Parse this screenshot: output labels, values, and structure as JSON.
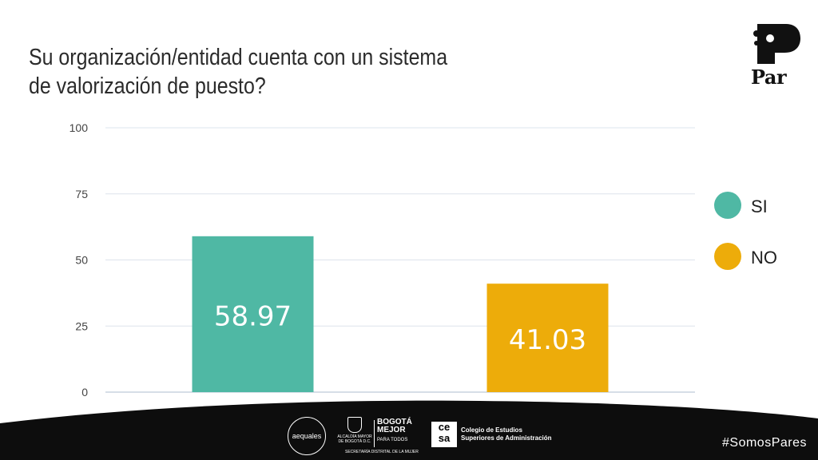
{
  "title_lines": [
    "Su organización/entidad cuenta con un sistema",
    "de valorización de puesto?"
  ],
  "chart_data": {
    "type": "bar",
    "title": "Su organización/entidad cuenta con un sistema de valorización de puesto?",
    "categories": [
      "SI",
      "NO"
    ],
    "values": [
      58.97,
      41.03
    ],
    "bar_value_labels": [
      "58.97",
      "41.03"
    ],
    "colors": [
      "#4fb8a4",
      "#edac0a"
    ],
    "ylim": [
      0,
      100
    ],
    "yticks": [
      0,
      25,
      50,
      75,
      100
    ],
    "ytick_labels": [
      "0",
      "25",
      "50",
      "75",
      "100"
    ],
    "grid": true,
    "legend_position": "right",
    "xlabel": "",
    "ylabel": ""
  },
  "legend": [
    {
      "label": "SI",
      "color": "#4fb8a4"
    },
    {
      "label": "NO",
      "color": "#edac0a"
    }
  ],
  "logo": {
    "text": "Par"
  },
  "footer": {
    "aequales": "aequales",
    "alcaldia": "ALCALDÍA MAYOR DE BOGOTÁ D.C.",
    "bogota_line1": "BOGOTÁ",
    "bogota_line2": "MEJOR",
    "bogota_line3": "PARA TODOS",
    "secretaria": "SECRETARÍA DISTRITAL DE LA MUJER",
    "cesa_logo": "ce sa",
    "cesa_line1": "Colegio de Estudios",
    "cesa_line2": "Superiores de Administración",
    "hashtag": "#SomosPares",
    "background_color": "#0d0d0d"
  }
}
